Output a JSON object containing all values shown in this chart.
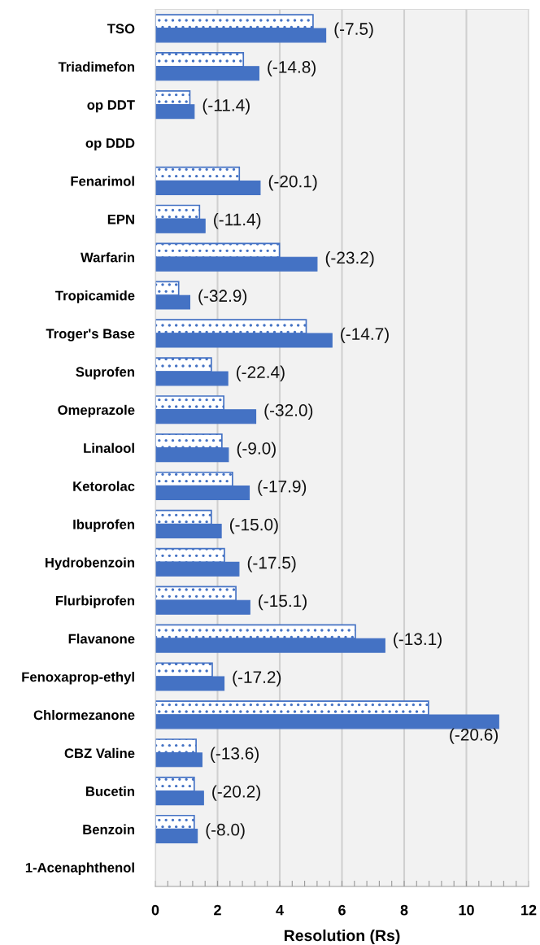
{
  "chart_data": {
    "type": "bar",
    "orientation": "horizontal",
    "xlabel": "Resolution (Rs)",
    "categories": [
      "TSO",
      "Triadimefon",
      "op DDT",
      "op DDD",
      "Fenarimol",
      "EPN",
      "Warfarin",
      "Tropicamide",
      "Troger's Base",
      "Suprofen",
      "Omeprazole",
      "Linalool",
      "Ketorolac",
      "Ibuprofen",
      "Hydrobenzoin",
      "Flurbiprofen",
      "Flavanone",
      "Fenoxaprop-ethyl",
      "Chlormezanone",
      "CBZ Valine",
      "Bucetin",
      "Benzoin",
      "1-Acenaphthenol"
    ],
    "series": [
      {
        "color": "#4472c4",
        "values": [
          5.07,
          2.83,
          1.11,
          null,
          2.7,
          1.42,
          3.99,
          0.75,
          4.85,
          1.8,
          2.2,
          2.14,
          2.48,
          1.8,
          2.22,
          2.59,
          6.43,
          1.83,
          8.78,
          1.31,
          1.25,
          1.25,
          null
        ]
      },
      {
        "color": "#4472c4",
        "values": [
          5.48,
          3.33,
          1.25,
          null,
          3.37,
          1.6,
          5.2,
          1.11,
          5.68,
          2.33,
          3.23,
          2.35,
          3.02,
          2.12,
          2.69,
          3.04,
          7.38,
          2.21,
          11.04,
          1.5,
          1.55,
          1.35,
          null
        ]
      }
    ],
    "annotations": [
      {
        "text": "(-7.5)",
        "x": 5.48,
        "y": "TSO"
      },
      {
        "text": "(-14.8)",
        "x": 3.33,
        "y": "Triadimefon"
      },
      {
        "text": "(-11.4)",
        "x": 1.25,
        "y": "op DDT"
      },
      {
        "text": "(-20.1)",
        "x": 3.37,
        "y": "Fenarimol"
      },
      {
        "text": "(-11.4)",
        "x": 1.6,
        "y": "EPN"
      },
      {
        "text": "(-23.2)",
        "x": 5.2,
        "y": "Warfarin"
      },
      {
        "text": "(-32.9)",
        "x": 1.11,
        "y": "Tropicamide"
      },
      {
        "text": "(-14.7)",
        "x": 5.68,
        "y": "Troger's Base"
      },
      {
        "text": "(-22.4)",
        "x": 2.33,
        "y": "Suprofen"
      },
      {
        "text": "(-32.0)",
        "x": 3.23,
        "y": "Omeprazole"
      },
      {
        "text": "(-9.0)",
        "x": 2.35,
        "y": "Linalool"
      },
      {
        "text": "(-17.9)",
        "x": 3.02,
        "y": "Ketorolac"
      },
      {
        "text": "(-15.0)",
        "x": 2.12,
        "y": "Ibuprofen"
      },
      {
        "text": "(-17.5)",
        "x": 2.69,
        "y": "Hydrobenzoin"
      },
      {
        "text": "(-15.1)",
        "x": 3.04,
        "y": "Flurbiprofen"
      },
      {
        "text": "(-13.1)",
        "x": 7.38,
        "y": "Flavanone"
      },
      {
        "text": "(-17.2)",
        "x": 2.21,
        "y": "Fenoxaprop-ethyl"
      },
      {
        "text": "(-20.6)",
        "x": 11.04,
        "y": "Chlormezanone"
      },
      {
        "text": "(-13.6)",
        "x": 1.5,
        "y": "CBZ Valine"
      },
      {
        "text": "(-20.2)",
        "x": 1.55,
        "y": "Bucetin"
      },
      {
        "text": "(-8.0)",
        "x": 1.35,
        "y": "Benzoin"
      }
    ],
    "xlim": [
      0,
      12
    ],
    "xticks": [
      0,
      {
        "value": 0.4,
        "label": null
      },
      {
        "value": 0.8,
        "label": null
      },
      {
        "value": 1.2,
        "label": null
      },
      {
        "value": 1.6,
        "label": null
      },
      2,
      {
        "value": 2.4,
        "label": null
      },
      {
        "value": 2.8,
        "label": null
      },
      {
        "value": 3.2,
        "label": null
      },
      {
        "value": 3.6,
        "label": null
      },
      4,
      {
        "value": 4.4,
        "label": null
      },
      {
        "value": 4.8,
        "label": null
      },
      {
        "value": 5.2,
        "label": null
      },
      {
        "value": 5.6,
        "label": null
      },
      6,
      {
        "value": 6.4,
        "label": null
      },
      {
        "value": 6.8,
        "label": null
      },
      {
        "value": 7.2,
        "label": null
      },
      {
        "value": 7.6,
        "label": null
      },
      8,
      {
        "value": 8.4,
        "label": null
      },
      {
        "value": 8.8,
        "label": null
      },
      {
        "value": 9.2,
        "label": null
      },
      {
        "value": 9.6,
        "label": null
      },
      10,
      {
        "value": 10.4,
        "label": null
      },
      {
        "value": 10.8,
        "label": null
      },
      {
        "value": 11.2,
        "label": null
      },
      {
        "value": 11.6,
        "label": null
      },
      12
    ],
    "grid": "x"
  }
}
